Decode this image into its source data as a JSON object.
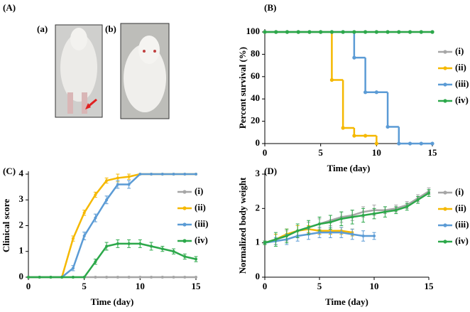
{
  "panel_a": {
    "label": "(A)",
    "photo_labels": [
      "(a)",
      "(b)"
    ]
  },
  "chart_data": [
    {
      "type": "line",
      "panel": "(B)",
      "step": true,
      "markers": true,
      "y_label": "Percent survival (%)",
      "x_label": "Time (day)",
      "x": [
        0,
        1,
        2,
        3,
        4,
        5,
        6,
        7,
        8,
        9,
        10,
        11,
        12,
        13,
        14,
        15
      ],
      "xlim": [
        0,
        15
      ],
      "xticks": [
        0,
        5,
        10,
        15
      ],
      "ylim": [
        0,
        100
      ],
      "yticks": [
        0,
        20,
        40,
        60,
        80,
        100
      ],
      "series": [
        {
          "name": "(i)",
          "color": "#a6a6a6",
          "values": [
            100,
            100,
            100,
            100,
            100,
            100,
            100,
            100,
            100,
            100,
            100,
            100,
            100,
            100,
            100,
            100
          ]
        },
        {
          "name": "(ii)",
          "color": "#f5b800",
          "values": [
            100,
            100,
            100,
            100,
            100,
            100,
            57,
            14,
            7,
            7,
            0,
            null,
            null,
            null,
            null,
            null
          ]
        },
        {
          "name": "(iii)",
          "color": "#5b9bd5",
          "values": [
            100,
            100,
            100,
            100,
            100,
            100,
            100,
            100,
            77,
            46,
            46,
            15,
            0,
            0,
            0,
            0
          ]
        },
        {
          "name": "(iv)",
          "color": "#2ca84a",
          "values": [
            100,
            100,
            100,
            100,
            100,
            100,
            100,
            100,
            100,
            100,
            100,
            100,
            100,
            100,
            100,
            100
          ]
        }
      ]
    },
    {
      "type": "line",
      "panel": "(C)",
      "error_bars": true,
      "y_label": "Clinical score",
      "x_label": "Time (day)",
      "x": [
        0,
        1,
        2,
        3,
        4,
        5,
        6,
        7,
        8,
        9,
        10,
        11,
        12,
        13,
        14,
        15
      ],
      "xlim": [
        0,
        15
      ],
      "xticks": [
        0,
        5,
        10,
        15
      ],
      "ylim": [
        0,
        4
      ],
      "yticks": [
        0,
        1,
        2,
        3,
        4
      ],
      "series": [
        {
          "name": "(i)",
          "color": "#a6a6a6",
          "values": [
            0,
            0,
            0,
            0,
            0,
            0,
            0,
            0,
            0,
            0,
            0,
            0,
            0,
            0,
            0,
            0
          ],
          "errors": [
            0,
            0,
            0,
            0,
            0,
            0,
            0,
            0,
            0,
            0,
            0,
            0,
            0,
            0,
            0,
            0
          ]
        },
        {
          "name": "(ii)",
          "color": "#f5b800",
          "values": [
            0,
            0,
            0,
            0,
            1.5,
            2.5,
            3.2,
            3.75,
            3.85,
            3.9,
            4,
            4,
            4,
            4,
            4,
            4
          ],
          "errors": [
            0,
            0,
            0,
            0,
            0.1,
            0.1,
            0.1,
            0.1,
            0.15,
            0.1,
            0,
            0,
            0,
            0,
            0,
            0
          ]
        },
        {
          "name": "(iii)",
          "color": "#5b9bd5",
          "values": [
            0,
            0,
            0,
            0,
            0.35,
            1.6,
            2.3,
            3.0,
            3.6,
            3.6,
            4,
            4,
            4,
            4,
            4,
            4
          ],
          "errors": [
            0,
            0,
            0,
            0,
            0.1,
            0.15,
            0.15,
            0.15,
            0.15,
            0.15,
            0,
            0,
            0,
            0,
            0,
            0
          ]
        },
        {
          "name": "(iv)",
          "color": "#2ca84a",
          "values": [
            0,
            0,
            0,
            0,
            0,
            0,
            0.6,
            1.2,
            1.3,
            1.3,
            1.3,
            1.2,
            1.1,
            1.0,
            0.8,
            0.7
          ],
          "errors": [
            0,
            0,
            0,
            0,
            0,
            0,
            0.1,
            0.15,
            0.15,
            0.15,
            0.15,
            0.15,
            0.1,
            0.1,
            0.1,
            0.1
          ]
        }
      ]
    },
    {
      "type": "line",
      "panel": "(D)",
      "error_bars": true,
      "y_label": "Normalized body weight",
      "x_label": "Time (day)",
      "x": [
        0,
        1,
        2,
        3,
        4,
        5,
        6,
        7,
        8,
        9,
        10,
        11,
        12,
        13,
        14,
        15
      ],
      "xlim": [
        0,
        15
      ],
      "xticks": [
        0,
        5,
        10,
        15
      ],
      "ylim": [
        0,
        3
      ],
      "yticks": [
        0,
        1,
        2,
        3
      ],
      "series": [
        {
          "name": "(i)",
          "color": "#a6a6a6",
          "values": [
            1,
            1.1,
            1.2,
            1.35,
            1.45,
            1.55,
            1.65,
            1.75,
            1.8,
            1.9,
            1.95,
            1.95,
            2.0,
            2.1,
            2.3,
            2.5
          ],
          "errors": [
            0.05,
            0.15,
            0.15,
            0.15,
            0.15,
            0.15,
            0.15,
            0.15,
            0.15,
            0.15,
            0.15,
            0.1,
            0.1,
            0.1,
            0.1,
            0.1
          ]
        },
        {
          "name": "(ii)",
          "color": "#f5b800",
          "values": [
            1,
            1.1,
            1.25,
            1.35,
            1.4,
            1.35,
            1.35,
            1.35,
            1.3,
            null,
            null,
            null,
            null,
            null,
            null,
            null
          ],
          "errors": [
            0.05,
            0.15,
            0.15,
            0.15,
            0.1,
            0.1,
            0.1,
            0.1,
            0.1,
            null,
            null,
            null,
            null,
            null,
            null,
            null
          ]
        },
        {
          "name": "(iii)",
          "color": "#5b9bd5",
          "values": [
            1,
            1.05,
            1.1,
            1.2,
            1.25,
            1.3,
            1.3,
            1.3,
            1.25,
            1.2,
            1.2,
            null,
            null,
            null,
            null,
            null
          ],
          "errors": [
            0.05,
            0.1,
            0.15,
            0.15,
            0.15,
            0.15,
            0.15,
            0.15,
            0.15,
            0.15,
            0.1,
            null,
            null,
            null,
            null,
            null
          ]
        },
        {
          "name": "(iv)",
          "color": "#2ca84a",
          "values": [
            1,
            1.1,
            1.2,
            1.35,
            1.45,
            1.55,
            1.6,
            1.7,
            1.75,
            1.8,
            1.85,
            1.9,
            1.95,
            2.05,
            2.25,
            2.45
          ],
          "errors": [
            0.05,
            0.2,
            0.2,
            0.2,
            0.2,
            0.2,
            0.2,
            0.2,
            0.2,
            0.2,
            0.15,
            0.15,
            0.1,
            0.1,
            0.1,
            0.1
          ]
        }
      ]
    }
  ]
}
